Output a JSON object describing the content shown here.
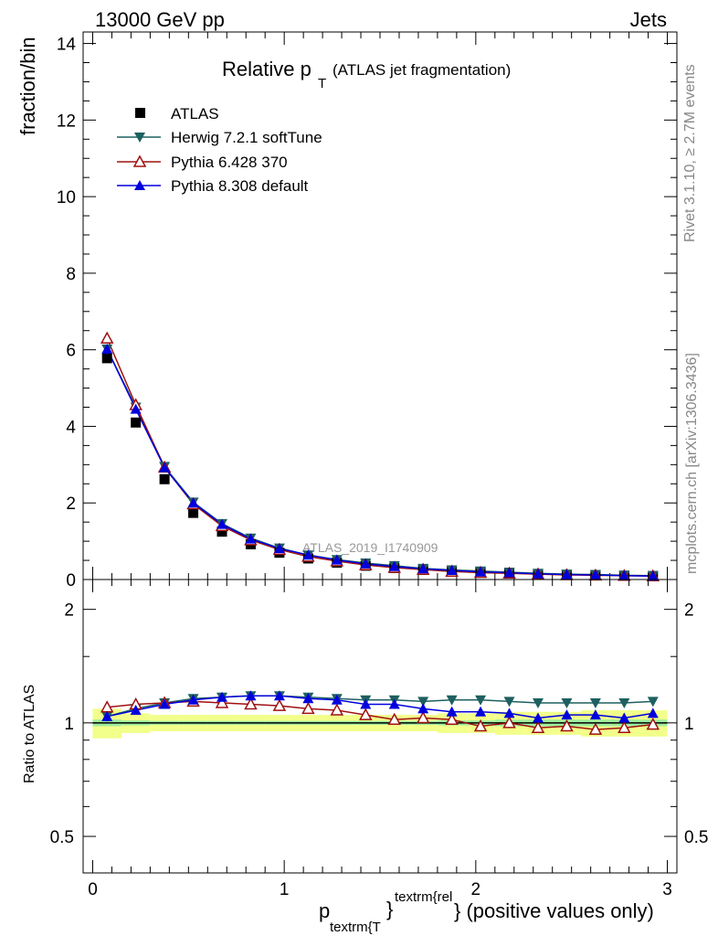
{
  "header": {
    "left": "13000 GeV pp",
    "right": "Jets"
  },
  "title": {
    "main": "Relative p",
    "sub": "T",
    "suffix": "(ATLAS jet fragmentation)"
  },
  "side_labels": {
    "rivet": "Rivet 3.1.10, ≥ 2.7M events",
    "mcplots": "mcplots.cern.ch [arXiv:1306.3436]"
  },
  "watermark": "ATLAS_2019_I1740909",
  "axes": {
    "ylabel_top": "fraction/bin",
    "ylabel_bottom": "Ratio to ATLAS",
    "xlabel_main": "p",
    "xlabel_sub": "textrm{T",
    "xlabel_sup": "textrm{rel",
    "xlabel_close": "}",
    "xlabel_suffix": "} (positive values only)",
    "top_yticks": [
      "0",
      "2",
      "4",
      "6",
      "8",
      "10",
      "12",
      "14"
    ],
    "bottom_yticks": [
      "0.5",
      "1",
      "2"
    ],
    "xticks": [
      "0",
      "1",
      "2",
      "3"
    ]
  },
  "colors": {
    "atlas": "#000000",
    "herwig": "#1e6060",
    "pythia6": "#a01010",
    "pythia8": "#0000dd",
    "band_outer": "#f2ff8a",
    "band_inner": "#9eed9e"
  },
  "chart_data": [
    {
      "type": "scatter",
      "panel": "main",
      "xlim": [
        -0.05,
        3.05
      ],
      "ylim": [
        0,
        14.3
      ],
      "x": [
        0.075,
        0.225,
        0.375,
        0.525,
        0.675,
        0.825,
        0.975,
        1.125,
        1.275,
        1.425,
        1.575,
        1.725,
        1.875,
        2.025,
        2.175,
        2.325,
        2.475,
        2.625,
        2.775,
        2.925
      ],
      "series": [
        {
          "name": "ATLAS",
          "marker": "square",
          "values": [
            5.78,
            4.1,
            2.62,
            1.74,
            1.25,
            0.92,
            0.7,
            0.55,
            0.44,
            0.36,
            0.3,
            0.25,
            0.21,
            0.18,
            0.16,
            0.14,
            0.12,
            0.11,
            0.1,
            0.09
          ]
        },
        {
          "name": "Herwig 7.2.1 softTune",
          "marker": "triangle-down",
          "values": [
            6.02,
            4.5,
            2.95,
            2.02,
            1.46,
            1.08,
            0.82,
            0.64,
            0.52,
            0.43,
            0.36,
            0.29,
            0.25,
            0.22,
            0.19,
            0.16,
            0.14,
            0.13,
            0.11,
            0.1
          ]
        },
        {
          "name": "Pythia 6.428 370",
          "marker": "triangle-up-open",
          "values": [
            6.3,
            4.56,
            2.93,
            1.97,
            1.4,
            1.03,
            0.78,
            0.6,
            0.48,
            0.38,
            0.31,
            0.26,
            0.21,
            0.18,
            0.16,
            0.14,
            0.12,
            0.11,
            0.1,
            0.09
          ]
        },
        {
          "name": "Pythia 8.308 default",
          "marker": "triangle-up",
          "values": [
            6.02,
            4.45,
            2.92,
            2.0,
            1.44,
            1.06,
            0.81,
            0.64,
            0.51,
            0.41,
            0.34,
            0.28,
            0.24,
            0.2,
            0.18,
            0.15,
            0.13,
            0.12,
            0.1,
            0.09
          ]
        }
      ]
    },
    {
      "type": "line",
      "panel": "ratio",
      "ylabel": "Ratio to ATLAS",
      "ylim": [
        0.4,
        2.4
      ],
      "log_y": true,
      "x": [
        0.075,
        0.225,
        0.375,
        0.525,
        0.675,
        0.825,
        0.975,
        1.125,
        1.275,
        1.425,
        1.575,
        1.725,
        1.875,
        2.025,
        2.175,
        2.325,
        2.475,
        2.625,
        2.775,
        2.925
      ],
      "series": [
        {
          "name": "Herwig 7.2.1 softTune",
          "values": [
            1.04,
            1.09,
            1.13,
            1.16,
            1.17,
            1.18,
            1.18,
            1.17,
            1.16,
            1.15,
            1.15,
            1.14,
            1.15,
            1.15,
            1.14,
            1.13,
            1.13,
            1.13,
            1.13,
            1.14
          ]
        },
        {
          "name": "Pythia 6.428 370",
          "values": [
            1.1,
            1.12,
            1.13,
            1.14,
            1.13,
            1.12,
            1.11,
            1.09,
            1.08,
            1.05,
            1.02,
            1.03,
            1.02,
            0.98,
            1.0,
            0.97,
            0.98,
            0.96,
            0.97,
            0.99
          ]
        },
        {
          "name": "Pythia 8.308 default",
          "values": [
            1.04,
            1.08,
            1.12,
            1.15,
            1.17,
            1.18,
            1.18,
            1.16,
            1.15,
            1.12,
            1.12,
            1.09,
            1.07,
            1.07,
            1.06,
            1.03,
            1.05,
            1.05,
            1.03,
            1.06
          ]
        }
      ],
      "band_outer": [
        0.09,
        0.06,
        0.05,
        0.05,
        0.05,
        0.05,
        0.05,
        0.05,
        0.05,
        0.05,
        0.05,
        0.05,
        0.06,
        0.06,
        0.07,
        0.07,
        0.07,
        0.08,
        0.08,
        0.08
      ],
      "band_inner": [
        0.02,
        0.015,
        0.012,
        0.012,
        0.012,
        0.012,
        0.012,
        0.012,
        0.012,
        0.012,
        0.012,
        0.012,
        0.015,
        0.015,
        0.02,
        0.02,
        0.02,
        0.02,
        0.02,
        0.02
      ]
    }
  ]
}
